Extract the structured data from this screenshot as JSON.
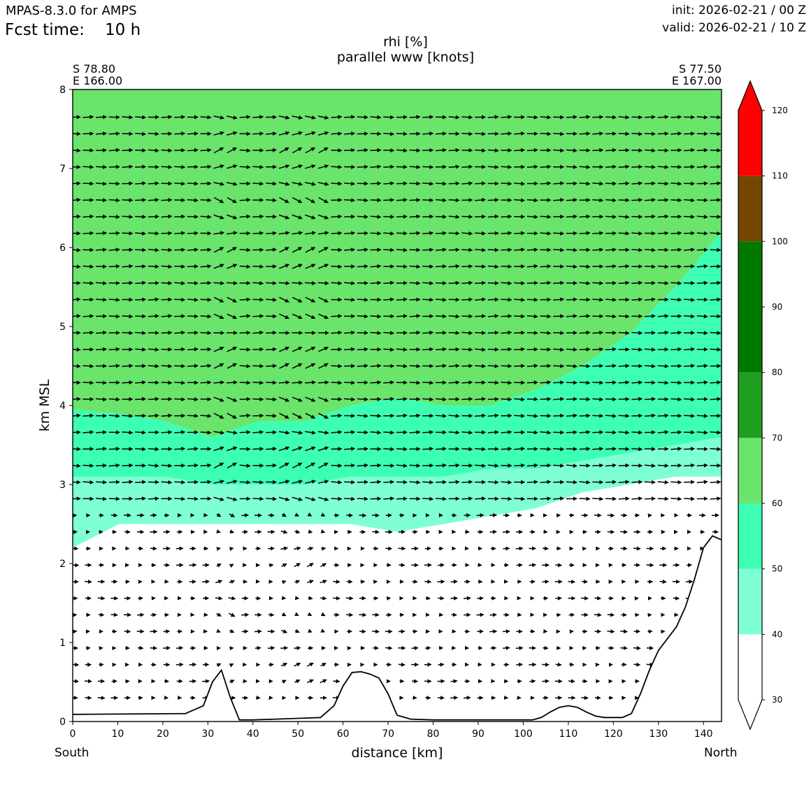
{
  "header": {
    "model": "MPAS-8.3.0 for AMPS",
    "fcst_label": "Fcst time:",
    "fcst_value": "10 h",
    "init": "init: 2026-02-21 / 00 Z",
    "valid": "valid: 2026-02-21 / 10 Z"
  },
  "chart_data": {
    "type": "contourf",
    "title": "rhi [%]",
    "subtitle": "parallel www [knots]",
    "xlabel": "distance [km]",
    "ylabel": "km MSL",
    "xlim": [
      0,
      144
    ],
    "ylim": [
      0,
      8
    ],
    "x_ticks": [
      0,
      10,
      20,
      30,
      40,
      50,
      60,
      70,
      80,
      90,
      100,
      110,
      120,
      130,
      140
    ],
    "y_ticks": [
      0,
      1,
      2,
      3,
      4,
      5,
      6,
      7,
      8
    ],
    "left_endpoint": {
      "lat": "S 78.80",
      "lon": "E 166.00",
      "label": "South"
    },
    "right_endpoint": {
      "lat": "S 77.50",
      "lon": "E 167.00",
      "label": "North"
    },
    "colorbar": {
      "ticks": [
        30,
        40,
        50,
        60,
        70,
        80,
        90,
        100,
        110,
        120
      ],
      "levels": [
        {
          "from": 30,
          "to": 40,
          "color": "#ffffff"
        },
        {
          "from": 40,
          "to": 50,
          "color": "#7fffd4"
        },
        {
          "from": 50,
          "to": 60,
          "color": "#3cffb4"
        },
        {
          "from": 60,
          "to": 70,
          "color": "#6ae46a"
        },
        {
          "from": 70,
          "to": 80,
          "color": "#1f9e1f"
        },
        {
          "from": 80,
          "to": 90,
          "color": "#007800"
        },
        {
          "from": 90,
          "to": 100,
          "color": "#007800"
        },
        {
          "from": 100,
          "to": 110,
          "color": "#734700"
        },
        {
          "from": 110,
          "to": 120,
          "color": "#ff0000"
        }
      ]
    },
    "rhi_layers": [
      {
        "level": "40-50",
        "color": "#7fffd4",
        "y_bottom": [
          2.2,
          2.5,
          2.5,
          2.5,
          2.5,
          2.5,
          2.5,
          2.4,
          2.5,
          2.6,
          2.7,
          2.9,
          3.0,
          3.1,
          3.1
        ],
        "y_top": [
          3.1,
          3.1,
          3.1,
          3.0,
          3.0,
          3.0,
          3.1,
          3.1,
          3.1,
          3.2,
          3.2,
          3.3,
          3.4,
          3.5,
          3.6
        ]
      },
      {
        "level": "50-60",
        "color": "#3cffb4",
        "y_bottom": [
          3.1,
          3.1,
          3.1,
          3.0,
          3.0,
          3.0,
          3.1,
          3.1,
          3.1,
          3.2,
          3.2,
          3.3,
          3.4,
          3.5,
          3.6
        ],
        "y_top": [
          3.95,
          3.9,
          3.8,
          3.6,
          3.8,
          3.8,
          4.0,
          4.1,
          4.0,
          4.0,
          4.2,
          4.5,
          4.9,
          5.5,
          6.2
        ]
      },
      {
        "level": "60-70",
        "color": "#6ae46a",
        "y_bottom": [
          3.95,
          3.9,
          3.8,
          3.6,
          3.8,
          3.8,
          4.0,
          4.1,
          4.0,
          4.0,
          4.2,
          4.5,
          4.9,
          5.5,
          6.2
        ],
        "y_top": [
          8,
          8,
          8,
          8,
          8,
          8,
          8,
          8,
          8,
          8,
          8,
          8,
          8,
          8,
          8
        ]
      }
    ],
    "terrain": {
      "x": [
        0,
        25,
        29,
        31,
        33,
        35,
        37,
        40,
        45,
        50,
        55,
        58,
        60,
        62,
        64,
        66,
        68,
        70,
        72,
        75,
        80,
        85,
        90,
        95,
        100,
        102,
        104,
        106,
        108,
        110,
        112,
        114,
        116,
        118,
        120,
        122,
        124,
        126,
        128,
        130,
        132,
        134,
        136,
        138,
        140,
        142,
        144
      ],
      "y": [
        0.09,
        0.1,
        0.2,
        0.5,
        0.65,
        0.3,
        0.02,
        0.02,
        0.03,
        0.04,
        0.05,
        0.2,
        0.45,
        0.62,
        0.63,
        0.6,
        0.55,
        0.35,
        0.08,
        0.03,
        0.02,
        0.02,
        0.02,
        0.02,
        0.02,
        0.02,
        0.05,
        0.12,
        0.18,
        0.2,
        0.18,
        0.12,
        0.07,
        0.05,
        0.05,
        0.05,
        0.1,
        0.35,
        0.65,
        0.9,
        1.05,
        1.2,
        1.45,
        1.8,
        2.2,
        2.35,
        2.3
      ]
    }
  }
}
